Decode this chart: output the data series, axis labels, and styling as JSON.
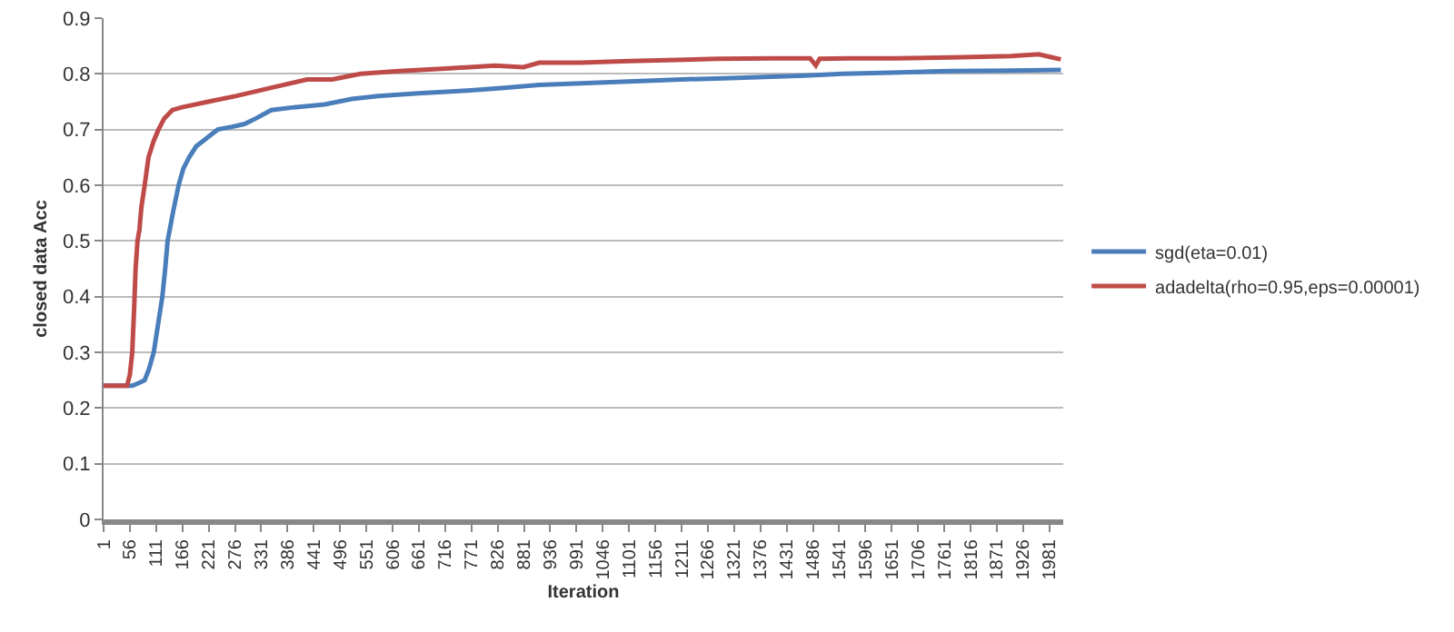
{
  "chart_data": {
    "type": "line",
    "xlabel": "Iteration",
    "ylabel": "closed data Acc",
    "xlim": [
      1,
      2010
    ],
    "xticks": [
      1,
      56,
      111,
      166,
      221,
      276,
      331,
      386,
      441,
      496,
      551,
      606,
      661,
      716,
      771,
      826,
      881,
      936,
      991,
      1046,
      1101,
      1156,
      1211,
      1266,
      1321,
      1376,
      1431,
      1486,
      1541,
      1596,
      1651,
      1706,
      1761,
      1816,
      1871,
      1926,
      1981
    ],
    "ylim": [
      0,
      0.9
    ],
    "yticks": [
      0,
      0.1,
      0.2,
      0.3,
      0.4,
      0.5,
      0.6,
      0.7,
      0.8,
      0.9
    ],
    "grid": "y",
    "legend": "right",
    "marker": "none",
    "line_style": "solid",
    "series": [
      {
        "name": "sgd(eta=0.01)",
        "color": "#4a7ebb",
        "x": [
          1,
          61,
          75,
          87,
          96,
          106,
          115,
          124,
          130,
          135,
          146,
          158,
          168,
          180,
          195,
          210,
          225,
          240,
          270,
          296,
          320,
          352,
          400,
          464,
          520,
          576,
          660,
          763,
          840,
          913,
          1000,
          1062,
          1150,
          1211,
          1300,
          1398,
          1470,
          1548,
          1650,
          1772,
          1900,
          2005
        ],
        "values": [
          0.24,
          0.24,
          0.245,
          0.25,
          0.27,
          0.3,
          0.35,
          0.4,
          0.45,
          0.5,
          0.55,
          0.6,
          0.63,
          0.65,
          0.67,
          0.68,
          0.69,
          0.7,
          0.705,
          0.71,
          0.72,
          0.735,
          0.74,
          0.745,
          0.755,
          0.76,
          0.765,
          0.77,
          0.775,
          0.78,
          0.783,
          0.785,
          0.788,
          0.79,
          0.792,
          0.795,
          0.797,
          0.8,
          0.802,
          0.805,
          0.806,
          0.807
        ]
      },
      {
        "name": "adadelta(rho=0.95,eps=0.00001)",
        "color": "#be4b48",
        "x": [
          1,
          30,
          50,
          56,
          61,
          65,
          68,
          72,
          76,
          80,
          87,
          95,
          106,
          116,
          128,
          145,
          165,
          220,
          277,
          352,
          427,
          480,
          539,
          620,
          726,
          820,
          880,
          913,
          1000,
          1100,
          1200,
          1286,
          1400,
          1480,
          1492,
          1500,
          1560,
          1660,
          1800,
          1900,
          1959,
          1985,
          2005
        ],
        "values": [
          0.24,
          0.24,
          0.24,
          0.26,
          0.3,
          0.38,
          0.45,
          0.5,
          0.52,
          0.56,
          0.6,
          0.65,
          0.68,
          0.7,
          0.72,
          0.735,
          0.74,
          0.75,
          0.76,
          0.775,
          0.79,
          0.79,
          0.8,
          0.805,
          0.81,
          0.815,
          0.812,
          0.82,
          0.82,
          0.823,
          0.825,
          0.827,
          0.828,
          0.828,
          0.815,
          0.827,
          0.828,
          0.828,
          0.83,
          0.832,
          0.835,
          0.83,
          0.826
        ]
      }
    ]
  }
}
